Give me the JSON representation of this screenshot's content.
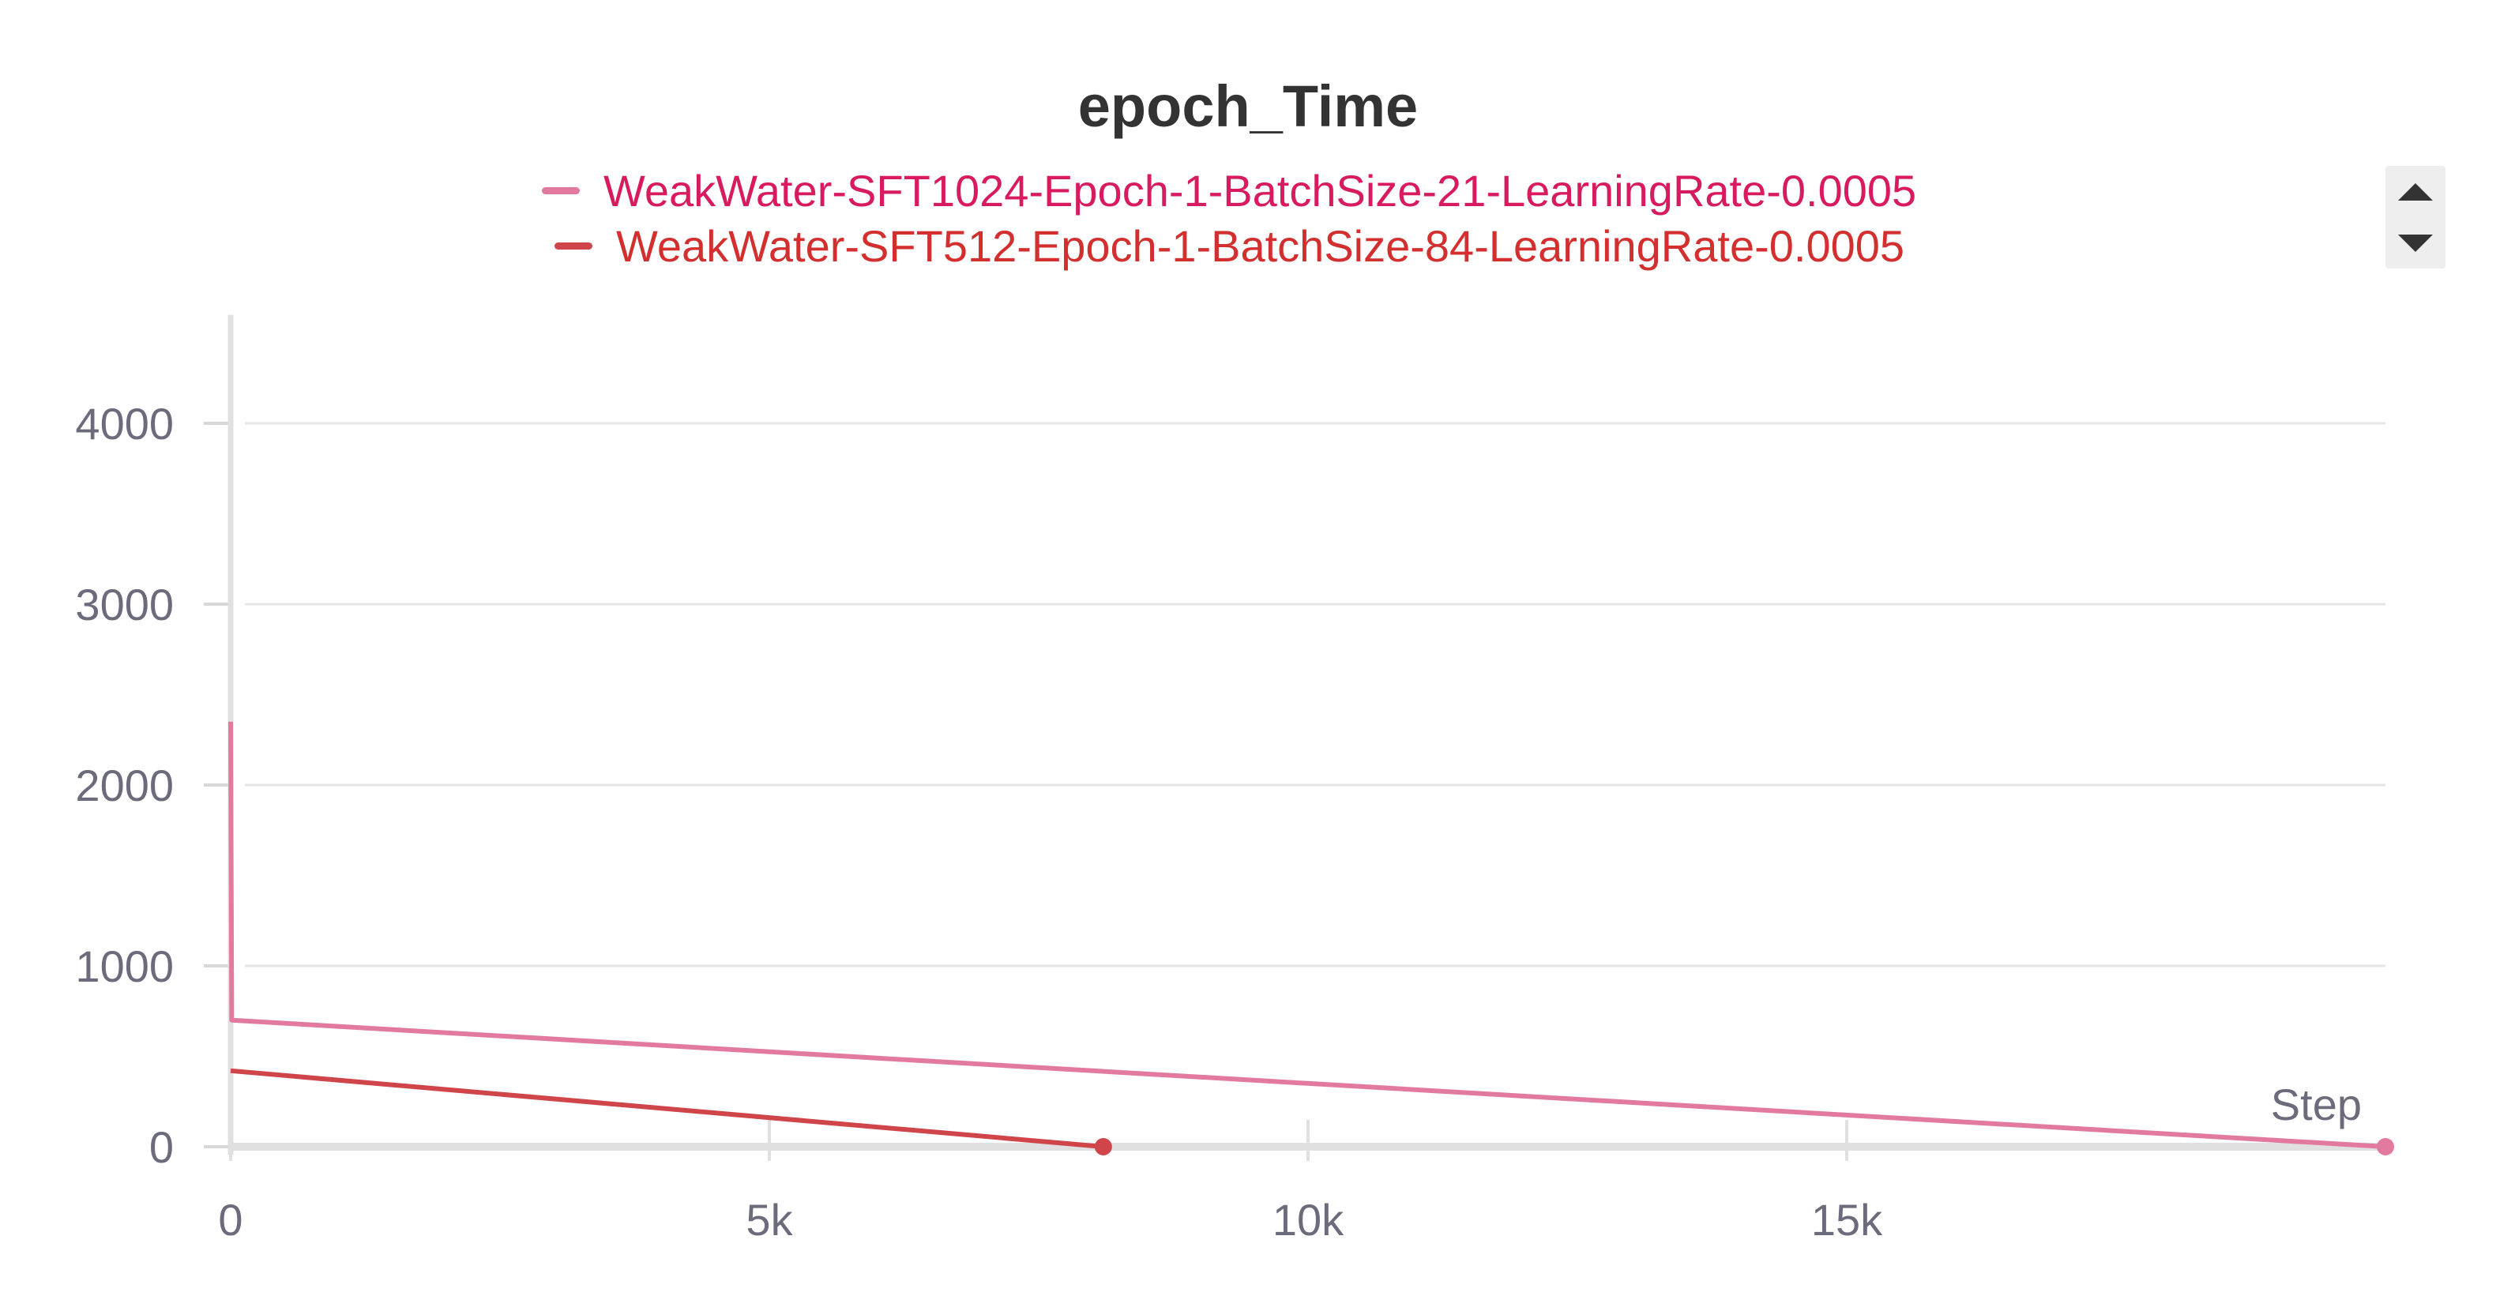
{
  "chart_data": {
    "type": "line",
    "title": "epoch_Time",
    "xlabel": "Step",
    "ylabel": "",
    "xlim": [
      0,
      20000
    ],
    "ylim": [
      0,
      4600
    ],
    "xticks": [
      0,
      5000,
      10000,
      15000
    ],
    "xtick_labels": [
      "0",
      "5k",
      "10k",
      "15k"
    ],
    "yticks": [
      0,
      1000,
      2000,
      3000,
      4000
    ],
    "ytick_labels": [
      "0",
      "1000",
      "2000",
      "3000",
      "4000"
    ],
    "grid": true,
    "legend_position": "top",
    "series": [
      {
        "name": "WeakWater-SFT1024-Epoch-1-BatchSize-21-LearningRate-0.0005",
        "color": "#e27aa0",
        "x": [
          0,
          10,
          20000
        ],
        "y": [
          2350,
          700,
          0
        ]
      },
      {
        "name": "WeakWater-SFT512-Epoch-1-BatchSize-84-LearningRate-0.0005",
        "color": "#d0454a",
        "x": [
          0,
          8100
        ],
        "y": [
          420,
          0
        ]
      }
    ]
  },
  "legend_colors": {
    "series_0_text": "#d81b60",
    "series_1_text": "#d32f2f"
  },
  "icons": {
    "scroll_up": "triangle-up-icon",
    "scroll_down": "triangle-down-icon"
  }
}
